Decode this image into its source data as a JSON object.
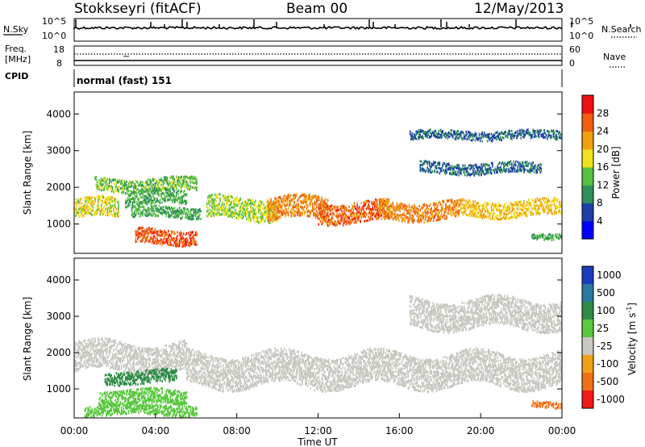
{
  "header": {
    "station": "Stokkseyri (fitACF)",
    "beam": "Beam 00",
    "date": "12/May/2013"
  },
  "noise_panel": {
    "left_label": "N.Sky",
    "right_label": "N.Search",
    "left_ticks": [
      "10^5",
      "10^0"
    ],
    "right_ticks": [
      "10^5",
      "10^0"
    ]
  },
  "freq_panel": {
    "left_label_1": "Freq.",
    "left_label_2": "[MHz]",
    "right_label": "Nave",
    "left_ticks": [
      "18",
      "8"
    ],
    "right_ticks": [
      "60",
      "0"
    ]
  },
  "cpid_panel": {
    "label": "CPID",
    "text": "normal (fast) 151"
  },
  "colors": {
    "power_scale": [
      "#0000ff",
      "#1f3fa8",
      "#2f8f5a",
      "#58c040",
      "#f0e020",
      "#f0a010",
      "#f06010",
      "#f01010"
    ],
    "velocity_scale": [
      "#1c3cc0",
      "#2a78a0",
      "#2e8c46",
      "#58c83c",
      "#c8c8c0",
      "#f0a018",
      "#f07018",
      "#f01818"
    ],
    "ground_scatter": "#c8c8c0"
  },
  "chart_data": [
    {
      "type": "heatmap",
      "panel": "power",
      "xlabel": "",
      "ylabel": "Slant Range [km]",
      "xlim": [
        "00:00",
        "00:00"
      ],
      "ylim": [
        200,
        4600
      ],
      "yticks": [
        1000,
        2000,
        3000,
        4000
      ],
      "colorbar_label": "Power [dB]",
      "colorbar_ticks": [
        4,
        8,
        12,
        16,
        20,
        24,
        28
      ],
      "colorbar_range": [
        0,
        32
      ],
      "bands": [
        {
          "t_start": 0.0,
          "t_end": 2.2,
          "r_center": 1450,
          "r_width": 260,
          "value": 18
        },
        {
          "t_start": 1.0,
          "t_end": 6.0,
          "r_center": 2100,
          "r_width": 180,
          "value": 14
        },
        {
          "t_start": 2.5,
          "t_end": 5.5,
          "r_center": 1750,
          "r_width": 200,
          "value": 12
        },
        {
          "t_start": 2.8,
          "t_end": 6.2,
          "r_center": 1350,
          "r_width": 150,
          "value": 12
        },
        {
          "t_start": 3.0,
          "t_end": 6.0,
          "r_center": 680,
          "r_width": 200,
          "value": 27
        },
        {
          "t_start": 6.5,
          "t_end": 10.0,
          "r_center": 1450,
          "r_width": 300,
          "value": 16
        },
        {
          "t_start": 9.5,
          "t_end": 12.5,
          "r_center": 1450,
          "r_width": 300,
          "value": 24
        },
        {
          "t_start": 12.0,
          "t_end": 15.5,
          "r_center": 1350,
          "r_width": 280,
          "value": 26
        },
        {
          "t_start": 15.0,
          "t_end": 19.0,
          "r_center": 1400,
          "r_width": 250,
          "value": 24
        },
        {
          "t_start": 19.0,
          "t_end": 24.0,
          "r_center": 1450,
          "r_width": 220,
          "value": 20
        },
        {
          "t_start": 16.5,
          "t_end": 24.0,
          "r_center": 3450,
          "r_width": 120,
          "value": 8
        },
        {
          "t_start": 17.0,
          "t_end": 23.0,
          "r_center": 2550,
          "r_width": 150,
          "value": 8
        },
        {
          "t_start": 22.5,
          "t_end": 24.0,
          "r_center": 700,
          "r_width": 80,
          "value": 12
        }
      ]
    },
    {
      "type": "heatmap",
      "panel": "velocity",
      "xlabel": "Time UT",
      "ylabel": "Slant Range [km]",
      "xlim": [
        "00:00",
        "00:00"
      ],
      "xticks": [
        "00:00",
        "04:00",
        "08:00",
        "12:00",
        "16:00",
        "20:00",
        "00:00"
      ],
      "ylim": [
        200,
        4600
      ],
      "yticks": [
        1000,
        2000,
        3000,
        4000
      ],
      "colorbar_label": "Velocity [m s^-1]",
      "colorbar_ticks": [
        1000,
        500,
        100,
        25,
        -25,
        -100,
        -500,
        -1000
      ],
      "bands": [
        {
          "t_start": 0.0,
          "t_end": 5.5,
          "r_center": 1900,
          "r_width": 400,
          "value": 0
        },
        {
          "t_start": 5.5,
          "t_end": 24.0,
          "r_center": 1550,
          "r_width": 450,
          "value": 0
        },
        {
          "t_start": 1.5,
          "t_end": 5.0,
          "r_center": 1350,
          "r_width": 180,
          "value": 300
        },
        {
          "t_start": 1.2,
          "t_end": 5.5,
          "r_center": 800,
          "r_width": 200,
          "value": 80
        },
        {
          "t_start": 0.5,
          "t_end": 6.0,
          "r_center": 450,
          "r_width": 150,
          "value": 60
        },
        {
          "t_start": 22.5,
          "t_end": 24.0,
          "r_center": 600,
          "r_width": 80,
          "value": -300
        },
        {
          "t_start": 16.5,
          "t_end": 24.0,
          "r_center": 3100,
          "r_width": 400,
          "value": 0
        }
      ]
    }
  ]
}
